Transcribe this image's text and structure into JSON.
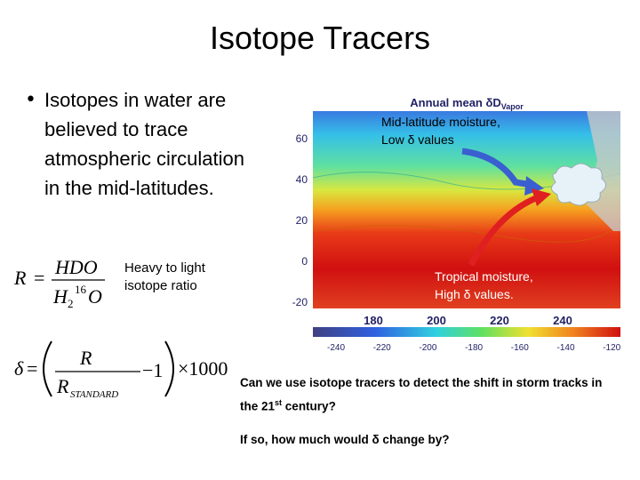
{
  "slide": {
    "title": "Isotope Tracers",
    "bullet": "Isotopes in water are believed to trace atmospheric circulation in the mid-latitudes.",
    "ratio_formula": {
      "lhs": "R",
      "eq": "=",
      "numerator": "HDO",
      "den_h": "H",
      "den_sub": "2",
      "den_sup": "16",
      "den_o": "O"
    },
    "ratio_note": "Heavy to light isotope ratio",
    "delta_formula": {
      "lhs": "δ",
      "eq": "=",
      "numerator": "R",
      "den_r": "R",
      "den_sub": "STANDARD",
      "minus_one": "−1",
      "times": "×1000"
    },
    "map": {
      "title": "Annual mean δD",
      "title_sub": "Vapor",
      "yticks": [
        60,
        40,
        20,
        0,
        -20
      ],
      "xticks": [
        180,
        200,
        220,
        240
      ],
      "colorbar_ticks": [
        -240,
        -220,
        -200,
        -180,
        -160,
        -140,
        -120
      ],
      "annotation_mid": [
        "Mid-latitude moisture,",
        "Low δ values"
      ],
      "annotation_trop": [
        "Tropical moisture,",
        "High δ values."
      ]
    },
    "question": {
      "text": "Can we use isotope tracers to detect the shift in storm tracks in the 21",
      "sup": "st",
      "end": " century?"
    },
    "followup": "If so, how much would δ change by?"
  }
}
